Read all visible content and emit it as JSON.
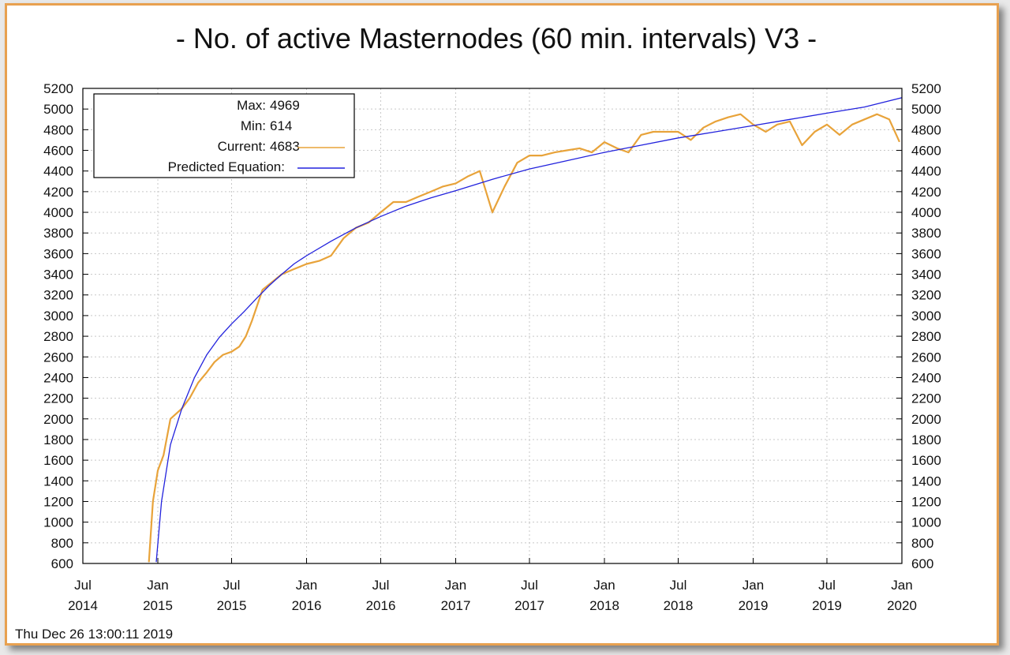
{
  "chart_data": {
    "type": "line",
    "title": "- No. of active Masternodes (60 min. intervals) V3 -",
    "timestamp": "Thu Dec 26 13:00:11 2019",
    "ylim": [
      600,
      5200
    ],
    "y_ticks": [
      600,
      800,
      1000,
      1200,
      1400,
      1600,
      1800,
      2000,
      2200,
      2400,
      2600,
      2800,
      3000,
      3200,
      3400,
      3600,
      3800,
      4000,
      4200,
      4400,
      4600,
      4800,
      5000,
      5200
    ],
    "x_ticks": [
      {
        "month": "Jul",
        "year": "2014"
      },
      {
        "month": "Jan",
        "year": "2015"
      },
      {
        "month": "Jul",
        "year": "2015"
      },
      {
        "month": "Jan",
        "year": "2016"
      },
      {
        "month": "Jul",
        "year": "2016"
      },
      {
        "month": "Jan",
        "year": "2017"
      },
      {
        "month": "Jul",
        "year": "2017"
      },
      {
        "month": "Jan",
        "year": "2018"
      },
      {
        "month": "Jul",
        "year": "2018"
      },
      {
        "month": "Jan",
        "year": "2019"
      },
      {
        "month": "Jul",
        "year": "2019"
      },
      {
        "month": "Jan",
        "year": "2020"
      }
    ],
    "grid": true,
    "legend_position": "top-left",
    "legend": [
      {
        "label": "Max:",
        "value": "4969"
      },
      {
        "label": "Min:",
        "value": "614"
      },
      {
        "label": "Current:",
        "value": "4683",
        "color": "#e8a33a"
      },
      {
        "label": "Predicted Equation:",
        "value": "",
        "color": "#2222dd"
      }
    ],
    "colors": {
      "current": "#e8a33a",
      "gap": "#000000",
      "predicted": "#2222dd"
    },
    "series": [
      {
        "name": "Current",
        "x": [
          "2014-12-10",
          "2014-12-20",
          "2015-01-01",
          "2015-01-15",
          "2015-02-01",
          "2015-02-15",
          "2015-03-01",
          "2015-03-20",
          "2015-04-10",
          "2015-05-01",
          "2015-05-20",
          "2015-06-10",
          "2015-07-01",
          "2015-07-20",
          "2015-08-05",
          "2015-08-20",
          "2015-09-15",
          "2015-10-10",
          "2015-11-01",
          "2015-12-01",
          "2016-01-01",
          "2016-02-01",
          "2016-03-01",
          "2016-04-01",
          "2016-05-01",
          "2016-06-01",
          "2016-07-01",
          "2016-08-01",
          "2016-09-01",
          "2016-10-01",
          "2016-11-01",
          "2016-12-01",
          "2017-01-01",
          "2017-02-01",
          "2017-03-01",
          "2017-04-01",
          "2017-05-01",
          "2017-06-01",
          "2017-07-01",
          "2017-08-01",
          "2017-09-01",
          "2017-10-01",
          "2017-11-01",
          "2017-12-01",
          "2018-01-01",
          "2018-02-01",
          "2018-03-01",
          "2018-04-01",
          "2018-05-01",
          "2018-06-01",
          "2018-07-01",
          "2018-08-01",
          "2018-09-01",
          "2018-10-01",
          "2018-11-01",
          "2018-12-01",
          "2019-01-01",
          "2019-02-01",
          "2019-03-01",
          "2019-04-01",
          "2019-05-01",
          "2019-06-01",
          "2019-07-01",
          "2019-08-01",
          "2019-09-01",
          "2019-10-01",
          "2019-11-01",
          "2019-12-01",
          "2019-12-26"
        ],
        "values": [
          614,
          1200,
          1500,
          1650,
          2000,
          2050,
          2100,
          2200,
          2350,
          2450,
          2550,
          2620,
          2650,
          2700,
          2800,
          2950,
          3250,
          3330,
          3400,
          3450,
          3500,
          3530,
          3580,
          3750,
          3850,
          3900,
          4000,
          4100,
          4100,
          4150,
          4200,
          4250,
          4280,
          4350,
          4400,
          4000,
          4250,
          4480,
          4550,
          4550,
          4580,
          4600,
          4620,
          4580,
          4680,
          4620,
          4580,
          4750,
          4780,
          4780,
          4780,
          4700,
          4820,
          4880,
          4920,
          4950,
          4850,
          4780,
          4850,
          4880,
          4650,
          4780,
          4850,
          4750,
          4850,
          4900,
          4950,
          4900,
          4683
        ]
      },
      {
        "name": "Predicted Equation",
        "x": [
          "2014-12-28",
          "2015-01-10",
          "2015-02-01",
          "2015-03-01",
          "2015-04-01",
          "2015-05-01",
          "2015-06-01",
          "2015-07-01",
          "2015-08-01",
          "2015-09-01",
          "2015-10-01",
          "2015-11-01",
          "2015-12-01",
          "2016-01-01",
          "2016-03-01",
          "2016-05-01",
          "2016-07-01",
          "2016-09-01",
          "2016-11-01",
          "2017-01-01",
          "2017-04-01",
          "2017-07-01",
          "2017-10-01",
          "2018-01-01",
          "2018-04-01",
          "2018-07-01",
          "2018-10-01",
          "2019-01-01",
          "2019-04-01",
          "2019-07-01",
          "2019-10-01",
          "2020-01-01"
        ],
        "values": [
          614,
          1200,
          1750,
          2100,
          2400,
          2620,
          2790,
          2920,
          3040,
          3170,
          3290,
          3400,
          3500,
          3580,
          3720,
          3850,
          3960,
          4060,
          4140,
          4210,
          4320,
          4420,
          4500,
          4580,
          4650,
          4720,
          4780,
          4840,
          4900,
          4960,
          5020,
          5110
        ]
      }
    ]
  }
}
